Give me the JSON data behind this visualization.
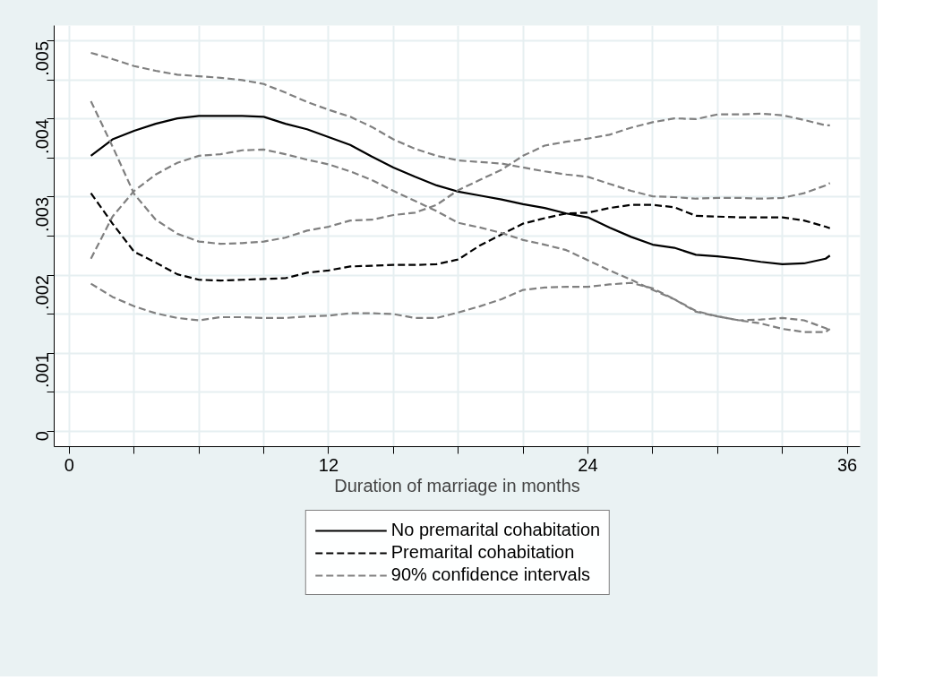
{
  "chart_data": {
    "type": "line",
    "xlabel": "Duration of marriage in months",
    "x": [
      1,
      2,
      3,
      4,
      5,
      6,
      7,
      8,
      9,
      10,
      11,
      12,
      13,
      14,
      15,
      16,
      17,
      18,
      19,
      20,
      21,
      22,
      23,
      24,
      25,
      26,
      27,
      28,
      29,
      30,
      31,
      32,
      33,
      34,
      35,
      35.2
    ],
    "series": [
      {
        "name": "No premarital cohabitation",
        "color": "#000000",
        "line_style": "solid",
        "values": [
          0.00353,
          0.00374,
          0.00385,
          0.00394,
          0.00401,
          0.00404,
          0.00404,
          0.00404,
          0.00403,
          0.00394,
          0.00387,
          0.00377,
          0.00367,
          0.00352,
          0.00338,
          0.00326,
          0.00315,
          0.00307,
          0.00302,
          0.00297,
          0.00291,
          0.00286,
          0.00279,
          0.00274,
          0.00261,
          0.00249,
          0.00239,
          0.00235,
          0.00226,
          0.00224,
          0.00221,
          0.00217,
          0.00214,
          0.00215,
          0.00221,
          0.00225
        ]
      },
      {
        "name": "Premarital cohabitation",
        "color": "#000000",
        "line_style": "dashed",
        "values": [
          0.00305,
          0.00266,
          0.0023,
          0.00216,
          0.00201,
          0.00194,
          0.00193,
          0.00194,
          0.00195,
          0.00196,
          0.00203,
          0.00206,
          0.00211,
          0.00212,
          0.00213,
          0.00213,
          0.00214,
          0.0022,
          0.00238,
          0.00252,
          0.00266,
          0.00273,
          0.00279,
          0.0028,
          0.00286,
          0.0029,
          0.0029,
          0.00287,
          0.00276,
          0.00275,
          0.00274,
          0.00274,
          0.00274,
          0.0027,
          0.00262,
          0.0026
        ]
      },
      {
        "name": "90% confidence intervals",
        "color": "#808080",
        "line_style": "dashed",
        "values": [
          0.00485,
          0.00477,
          0.00468,
          0.00462,
          0.00457,
          0.00455,
          0.00453,
          0.0045,
          0.00445,
          0.00434,
          0.00422,
          0.00412,
          0.00403,
          0.0039,
          0.00374,
          0.00362,
          0.00353,
          0.00347,
          0.00345,
          0.00343,
          0.00338,
          0.00333,
          0.00329,
          0.00326,
          0.00317,
          0.00308,
          0.00301,
          0.003,
          0.00298,
          0.00299,
          0.00299,
          0.00298,
          0.00299,
          0.00305,
          0.00315,
          0.00318
        ]
      },
      {
        "color": "#808080",
        "line_style": "dashed",
        "values": [
          0.00221,
          0.00275,
          0.00308,
          0.00329,
          0.00344,
          0.00353,
          0.00355,
          0.0036,
          0.00361,
          0.00355,
          0.00348,
          0.00342,
          0.00333,
          0.00322,
          0.00308,
          0.00295,
          0.00282,
          0.00267,
          0.00261,
          0.00254,
          0.00245,
          0.00239,
          0.00232,
          0.00219,
          0.00206,
          0.00194,
          0.00181,
          0.00169,
          0.00154,
          0.00147,
          0.00142,
          0.00138,
          0.00131,
          0.00127,
          0.00127,
          0.00131
        ]
      },
      {
        "color": "#808080",
        "line_style": "dashed",
        "values": [
          0.00423,
          0.00365,
          0.00304,
          0.00271,
          0.00253,
          0.00243,
          0.0024,
          0.00241,
          0.00243,
          0.00248,
          0.00257,
          0.00262,
          0.0027,
          0.00271,
          0.00277,
          0.0028,
          0.0029,
          0.00309,
          0.00322,
          0.00335,
          0.00353,
          0.00366,
          0.00371,
          0.00375,
          0.0038,
          0.00389,
          0.00396,
          0.00401,
          0.004,
          0.00406,
          0.00406,
          0.00407,
          0.00405,
          0.00399,
          0.00392,
          0.00392
        ]
      },
      {
        "color": "#808080",
        "line_style": "dashed",
        "values": [
          0.00189,
          0.00172,
          0.0016,
          0.00151,
          0.00145,
          0.00142,
          0.00146,
          0.00146,
          0.00145,
          0.00145,
          0.00147,
          0.00148,
          0.00151,
          0.00151,
          0.0015,
          0.00145,
          0.00145,
          0.00152,
          0.0016,
          0.00169,
          0.00181,
          0.00184,
          0.00185,
          0.00185,
          0.00188,
          0.0019,
          0.00183,
          0.00169,
          0.00153,
          0.00147,
          0.00142,
          0.00143,
          0.00145,
          0.00142,
          0.00132,
          0.00129
        ]
      }
    ],
    "xlim": [
      -0.7,
      36.6
    ],
    "ylim": [
      -0.0002,
      0.0052
    ],
    "xticks": [
      0,
      {
        "value": 3,
        "label": null
      },
      {
        "value": 6,
        "label": null
      },
      {
        "value": 9,
        "label": null
      },
      12,
      {
        "value": 15,
        "label": null
      },
      {
        "value": 18,
        "label": null
      },
      {
        "value": 21,
        "label": null
      },
      24,
      {
        "value": 27,
        "label": null
      },
      {
        "value": 30,
        "label": null
      },
      {
        "value": 33,
        "label": null
      },
      36
    ],
    "yticks": [
      0,
      {
        "value": 0.0005,
        "label": null
      },
      {
        "value": 0.001,
        "label": ".001"
      },
      {
        "value": 0.0015,
        "label": null
      },
      {
        "value": 0.002,
        "label": ".002"
      },
      {
        "value": 0.0025,
        "label": null
      },
      {
        "value": 0.003,
        "label": ".003"
      },
      {
        "value": 0.0035,
        "label": null
      },
      {
        "value": 0.004,
        "label": ".004"
      },
      {
        "value": 0.0045,
        "label": null
      },
      {
        "value": 0.005,
        "label": ".005"
      }
    ],
    "grid": true,
    "legend": "bottom"
  }
}
